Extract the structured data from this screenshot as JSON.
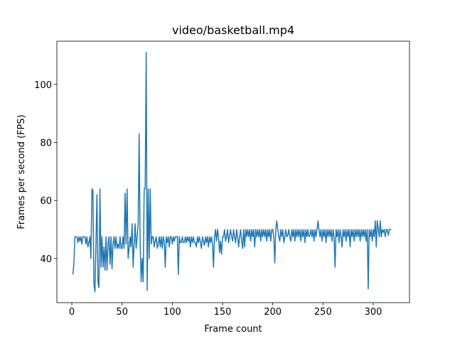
{
  "chart_data": {
    "type": "line",
    "title": "video/basketball.mp4",
    "xlabel": "Frame count",
    "ylabel": "Frames per second (FPS)",
    "x": [
      1,
      2,
      3,
      4,
      5,
      6,
      7,
      8,
      9,
      10,
      11,
      12,
      13,
      14,
      15,
      16,
      17,
      18,
      19,
      20,
      21,
      22,
      23,
      24,
      25,
      26,
      27,
      28,
      29,
      30,
      31,
      32,
      33,
      34,
      35,
      36,
      37,
      38,
      39,
      40,
      41,
      42,
      43,
      44,
      45,
      46,
      47,
      48,
      49,
      50,
      51,
      52,
      53,
      54,
      55,
      56,
      57,
      58,
      59,
      60,
      61,
      62,
      63,
      64,
      65,
      66,
      67,
      68,
      69,
      70,
      71,
      72,
      73,
      74,
      75,
      76,
      77,
      78,
      79,
      80,
      81,
      82,
      83,
      84,
      85,
      86,
      87,
      88,
      89,
      90,
      91,
      92,
      93,
      94,
      95,
      96,
      97,
      98,
      99,
      100,
      101,
      102,
      103,
      104,
      105,
      106,
      107,
      108,
      109,
      110,
      111,
      112,
      113,
      114,
      115,
      116,
      117,
      118,
      119,
      120,
      121,
      122,
      123,
      124,
      125,
      126,
      127,
      128,
      129,
      130,
      131,
      132,
      133,
      134,
      135,
      136,
      137,
      138,
      139,
      140,
      141,
      142,
      143,
      144,
      145,
      146,
      147,
      148,
      149,
      150,
      151,
      152,
      153,
      154,
      155,
      156,
      157,
      158,
      159,
      160,
      161,
      162,
      163,
      164,
      165,
      166,
      167,
      168,
      169,
      170,
      171,
      172,
      173,
      174,
      175,
      176,
      177,
      178,
      179,
      180,
      181,
      182,
      183,
      184,
      185,
      186,
      187,
      188,
      189,
      190,
      191,
      192,
      193,
      194,
      195,
      196,
      197,
      198,
      199,
      200,
      201,
      202,
      203,
      204,
      205,
      206,
      207,
      208,
      209,
      210,
      211,
      212,
      213,
      214,
      215,
      216,
      217,
      218,
      219,
      220,
      221,
      222,
      223,
      224,
      225,
      226,
      227,
      228,
      229,
      230,
      231,
      232,
      233,
      234,
      235,
      236,
      237,
      238,
      239,
      240,
      241,
      242,
      243,
      244,
      245,
      246,
      247,
      248,
      249,
      250,
      251,
      252,
      253,
      254,
      255,
      256,
      257,
      258,
      259,
      260,
      261,
      262,
      263,
      264,
      265,
      266,
      267,
      268,
      269,
      270,
      271,
      272,
      273,
      274,
      275,
      276,
      277,
      278,
      279,
      280,
      281,
      282,
      283,
      284,
      285,
      286,
      287,
      288,
      289,
      290,
      291,
      292,
      293,
      294,
      295,
      296,
      297,
      298,
      299,
      300,
      301,
      302,
      303,
      304,
      305,
      306,
      307,
      308,
      309,
      310,
      311,
      312,
      313,
      314,
      315,
      316,
      317,
      318
    ],
    "values": [
      34.5,
      38,
      47.5,
      47.5,
      47.5,
      45.5,
      47.5,
      46,
      47.5,
      45,
      47.5,
      47.5,
      47.5,
      45,
      47.5,
      44,
      45.5,
      47.5,
      40,
      64,
      63.5,
      31,
      28.5,
      45,
      62,
      32,
      30,
      64,
      37,
      47.5,
      37,
      44,
      36,
      47.5,
      36,
      45,
      47.5,
      38,
      47.5,
      36.5,
      45,
      47.5,
      43.5,
      47.5,
      43.5,
      45,
      43.5,
      47.5,
      43.5,
      43.5,
      47.5,
      43.5,
      62.5,
      45,
      64,
      40,
      43.5,
      47.5,
      44,
      52,
      37,
      45,
      52,
      43.5,
      47.5,
      52,
      83,
      45,
      32,
      40,
      32,
      64,
      64,
      111,
      29,
      64,
      40,
      64,
      45,
      47.5,
      47.5,
      44,
      46,
      47.5,
      43.5,
      45,
      47.5,
      44,
      47.5,
      43.5,
      47.5,
      46,
      37,
      47.5,
      45.5,
      47.5,
      44,
      47.5,
      47.5,
      45,
      47.5,
      46,
      47.5,
      47.5,
      47.5,
      34.5,
      47.5,
      45.5,
      45.5,
      47.5,
      45.5,
      45.5,
      47.5,
      45.5,
      47.5,
      46,
      47.5,
      44,
      47.5,
      45.5,
      47.5,
      45.5,
      45.5,
      44,
      47.5,
      45.5,
      47.5,
      45.5,
      43.5,
      47.5,
      46,
      44.5,
      47.5,
      45.5,
      47.5,
      44,
      47.5,
      45.5,
      47.5,
      45,
      37,
      47.5,
      50,
      46,
      50,
      47.5,
      42,
      46,
      41.5,
      47.5,
      47.5,
      50,
      46,
      47.5,
      50,
      45.5,
      47.5,
      50,
      47.5,
      46,
      50,
      47.5,
      45.5,
      50,
      47.5,
      44,
      47.5,
      50,
      46,
      43.5,
      50,
      44,
      50,
      47.5,
      50,
      47.5,
      50,
      46,
      50,
      47.5,
      50,
      44,
      50,
      47.5,
      50,
      47.5,
      50,
      46,
      50,
      47.5,
      50,
      47.5,
      50,
      46,
      50,
      47.5,
      50,
      46,
      50,
      50,
      47.5,
      38.5,
      50,
      53,
      50,
      47.5,
      46,
      50,
      47.5,
      50,
      45.5,
      47.5,
      50,
      47.5,
      48,
      50,
      47.5,
      46,
      50,
      47.5,
      50,
      46,
      50,
      47.5,
      50,
      47.5,
      50,
      46,
      50,
      47.5,
      50,
      45.5,
      50,
      47.5,
      50,
      47.5,
      48,
      50,
      47.5,
      50,
      46,
      50,
      47.5,
      50,
      53,
      50,
      47.5,
      50,
      46,
      50,
      47.5,
      50,
      45.5,
      50,
      47.5,
      50,
      47.5,
      50,
      46,
      50,
      47.5,
      37,
      50,
      47.5,
      50,
      45.5,
      50,
      47.5,
      44,
      50,
      47.5,
      50,
      46,
      50,
      47.5,
      50,
      44,
      50,
      47.5,
      50,
      46,
      50,
      47.5,
      50,
      47.5,
      50,
      46,
      50,
      47.5,
      50,
      47.5,
      50,
      46,
      50,
      29.5,
      50,
      47.5,
      50,
      46,
      50,
      47.5,
      53,
      44,
      53,
      50,
      47.5,
      53,
      47.5,
      50,
      49,
      50,
      47.5,
      50,
      50,
      48,
      50,
      50,
      50
    ],
    "color": "#1f77b4",
    "xlim": [
      -14.9,
      336.1
    ],
    "xticks": [
      0,
      50,
      100,
      150,
      200,
      250,
      300
    ],
    "ylim": [
      24.8,
      114.9
    ],
    "yticks": [
      40,
      60,
      80,
      100
    ]
  }
}
